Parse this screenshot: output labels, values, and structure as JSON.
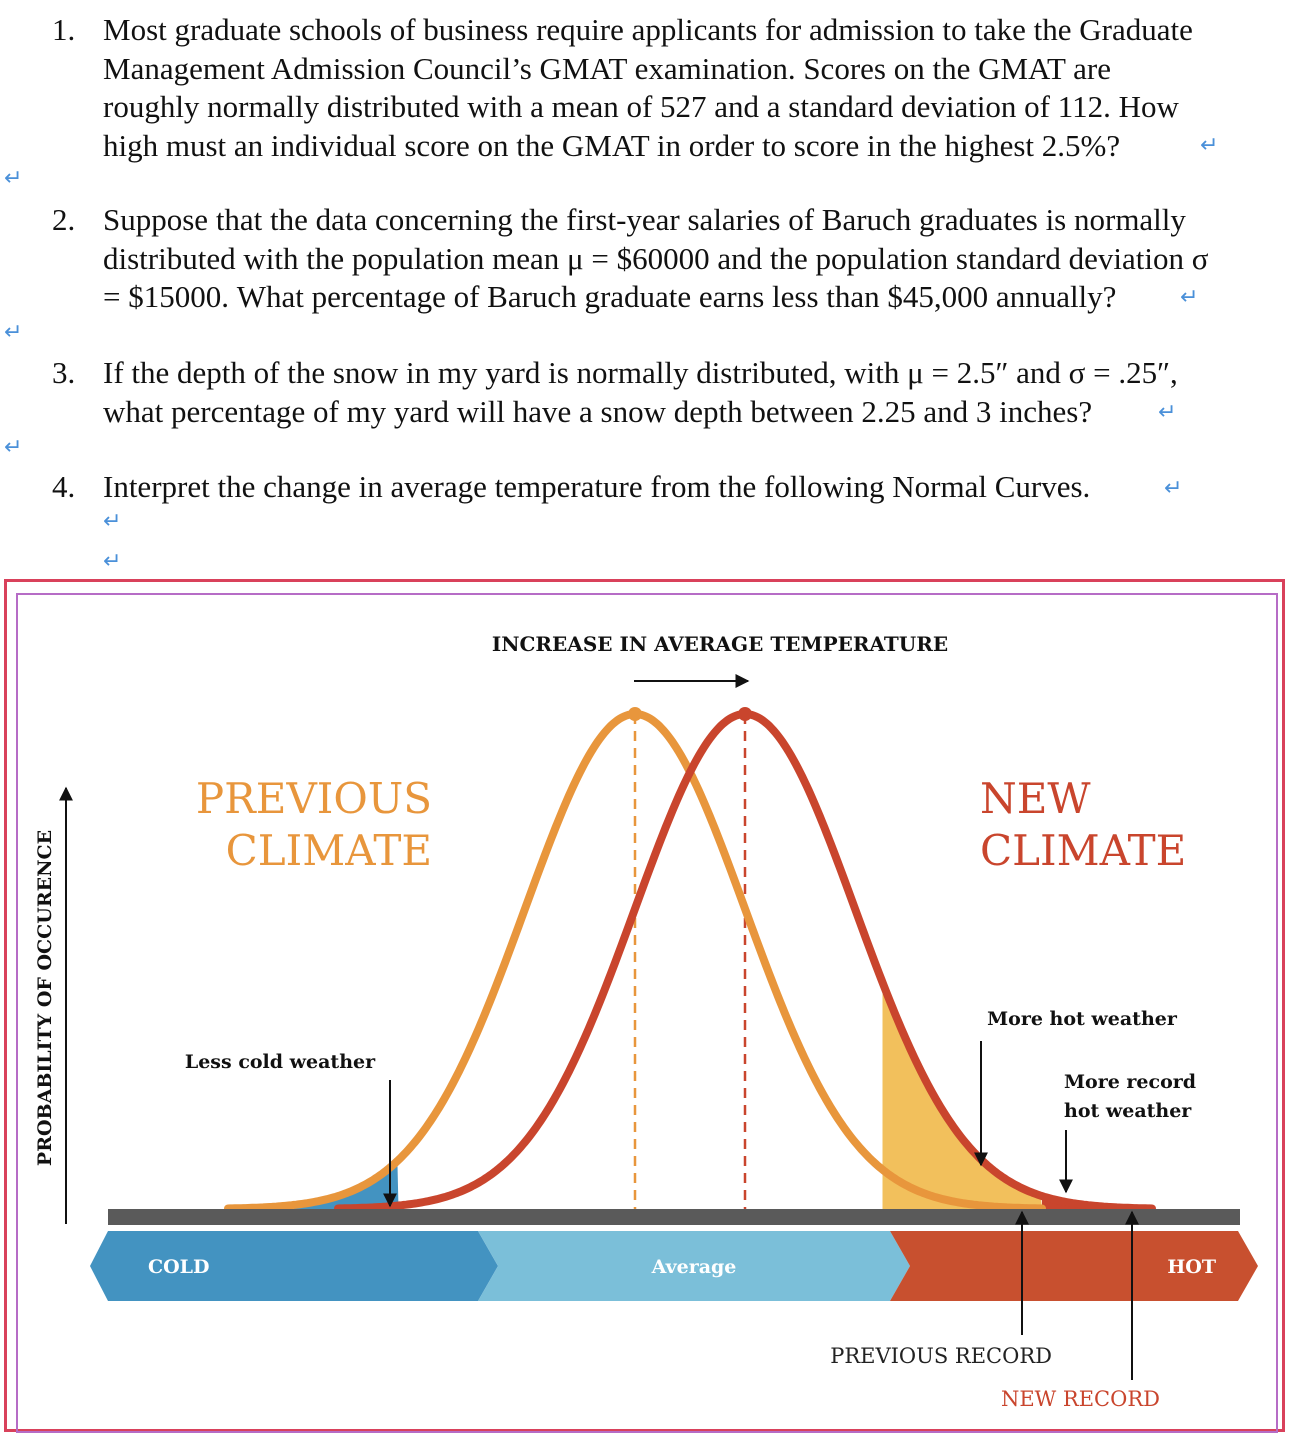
{
  "questions": [
    {
      "number": "1.",
      "text": "Most graduate schools of business require applicants for admission to take the Graduate\nManagement Admission Council’s GMAT examination. Scores on the GMAT are\nroughly normally distributed with a mean of 527 and a standard deviation of 112. How\nhigh must an individual score on the GMAT in order to score in the highest 2.5%?"
    },
    {
      "number": "2.",
      "text": "Suppose that the data concerning the first-year salaries of Baruch graduates is normally\ndistributed with the population mean μ = $60000 and the population standard deviation σ\n= $15000. What percentage of Baruch graduate earns less than $45,000 annually?"
    },
    {
      "number": "3.",
      "text": "If the depth of the snow in my yard is normally distributed, with μ = 2.5″ and σ = .25″,\nwhat percentage of my yard will have a snow depth between 2.25 and 3 inches?"
    },
    {
      "number": "4.",
      "text": "Interpret the change in average temperature from the following Normal Curves."
    }
  ],
  "paragraph_mark": "↵",
  "colors": {
    "previous": "#e8963c",
    "new": "#c9452d",
    "cold": "#4393c1",
    "average": "#7bbfd9",
    "hot": "#c8502f",
    "shade_hot": "#f2c05c",
    "baseline": "#5a5a5a",
    "frame_outer": "#d9415b",
    "frame_inner": "#b66cc6"
  },
  "chart_data": {
    "type": "area",
    "title": "INCREASE IN AVERAGE TEMPERATURE",
    "xlabel": "",
    "ylabel": "PROBABILITY OF OCCURENCE",
    "x_range": [
      -4,
      5.4
    ],
    "series": [
      {
        "name": "PREVIOUS CLIMATE",
        "mean": 0,
        "sd": 1,
        "peak": 1
      },
      {
        "name": "NEW CLIMATE",
        "mean": 1,
        "sd": 1,
        "peak": 1
      }
    ],
    "thresholds": {
      "cold_cutoff": -2.15,
      "hot_cutoff": 2.25,
      "previous_record": 3.7,
      "new_record": 4.7
    },
    "categories": [
      "COLD",
      "Average",
      "HOT"
    ],
    "annotations": {
      "less_cold": "Less cold weather",
      "more_hot": "More hot weather",
      "more_record_hot_line1": "More record",
      "more_record_hot_line2": "hot weather",
      "previous_record": "PREVIOUS RECORD",
      "new_record": "NEW RECORD"
    },
    "labels": {
      "previous_line1": "PREVIOUS",
      "previous_line2": "CLIMATE",
      "new_line1": "NEW",
      "new_line2": "CLIMATE"
    }
  }
}
